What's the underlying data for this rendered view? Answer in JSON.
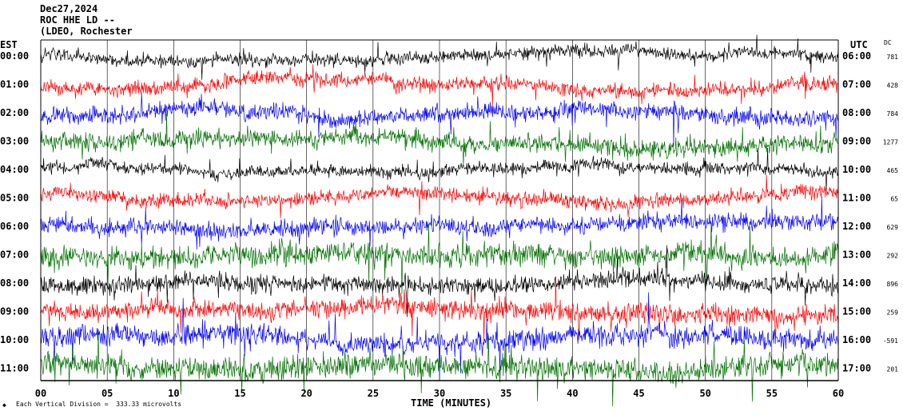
{
  "header": {
    "date": "Dec27,2024",
    "station": "ROC HHE LD --",
    "location": "(LDEO, Rochester"
  },
  "labels": {
    "left_zone": "EST",
    "right_zone": "UTC",
    "dc_header": "DC"
  },
  "footer": {
    "scale": "Each Vertical Division =  333.33 microvolts"
  },
  "colors": {
    "black": "#000000",
    "red": "#ff0000",
    "blue": "#0000ff",
    "green": "#007000",
    "grid": "#000000"
  },
  "chart_data": {
    "type": "line",
    "title": "",
    "xlabel": "TIME (MINUTES)",
    "ylabel": "",
    "xlim": [
      0,
      60
    ],
    "x_ticks": [
      "00",
      "05",
      "10",
      "15",
      "20",
      "25",
      "30",
      "35",
      "40",
      "45",
      "50",
      "55",
      "60"
    ],
    "grid": "vertical lines every 5 minutes",
    "rows": [
      {
        "est": "00:00",
        "utc": "06:00",
        "dc": "781",
        "color": "black"
      },
      {
        "est": "01:00",
        "utc": "07:00",
        "dc": "428",
        "color": "red"
      },
      {
        "est": "02:00",
        "utc": "08:00",
        "dc": "784",
        "color": "blue"
      },
      {
        "est": "03:00",
        "utc": "09:00",
        "dc": "1277",
        "color": "green"
      },
      {
        "est": "04:00",
        "utc": "10:00",
        "dc": "465",
        "color": "black"
      },
      {
        "est": "05:00",
        "utc": "11:00",
        "dc": "65",
        "color": "red"
      },
      {
        "est": "06:00",
        "utc": "12:00",
        "dc": "629",
        "color": "blue"
      },
      {
        "est": "07:00",
        "utc": "13:00",
        "dc": "292",
        "color": "green"
      },
      {
        "est": "08:00",
        "utc": "14:00",
        "dc": "896",
        "color": "black"
      },
      {
        "est": "09:00",
        "utc": "15:00",
        "dc": "259",
        "color": "red"
      },
      {
        "est": "10:00",
        "utc": "16:00",
        "dc": "-591",
        "color": "blue"
      },
      {
        "est": "11:00",
        "utc": "17:00",
        "dc": "201",
        "color": "green"
      }
    ]
  }
}
